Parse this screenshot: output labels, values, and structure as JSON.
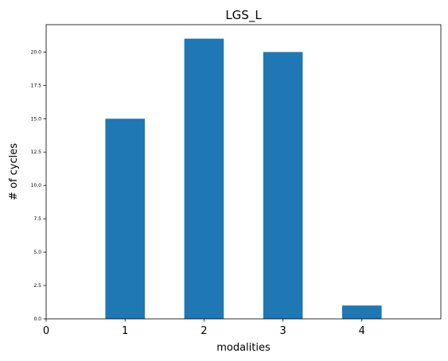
{
  "chart_data": {
    "type": "bar",
    "title": "LGS_L",
    "xlabel": "modalities",
    "ylabel": "# of cycles",
    "categories": [
      1,
      2,
      3,
      4
    ],
    "values": [
      15,
      21,
      20,
      1
    ],
    "xlim": [
      0,
      5
    ],
    "ylim": [
      0,
      22.05
    ],
    "xticks": [
      "0",
      "1",
      "2",
      "3",
      "4"
    ],
    "yticks": [
      "0.0",
      "2.5",
      "5.0",
      "7.5",
      "10.0",
      "12.5",
      "15.0",
      "17.5",
      "20.0"
    ],
    "grid": false,
    "bar_color": "#1f77b4"
  }
}
